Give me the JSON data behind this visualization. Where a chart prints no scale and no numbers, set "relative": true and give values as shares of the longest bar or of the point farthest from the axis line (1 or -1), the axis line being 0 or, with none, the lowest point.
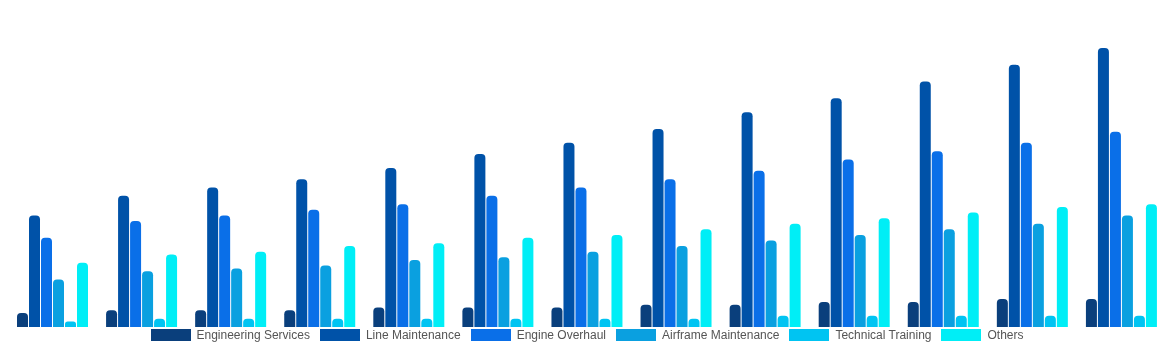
{
  "chart_data": {
    "type": "bar",
    "relative": true,
    "legend": "bottom",
    "categories": [
      null,
      null,
      null,
      null,
      null,
      null,
      null,
      null,
      null,
      null,
      null,
      null,
      null
    ],
    "series": [
      {
        "name": "Engineering Services",
        "color": "#0a3f7c",
        "values": [
          0.05,
          0.06,
          0.06,
          0.06,
          0.07,
          0.07,
          0.07,
          0.08,
          0.08,
          0.09,
          0.09,
          0.1,
          0.1
        ]
      },
      {
        "name": "Line Maintenance",
        "color": "#0052a8",
        "values": [
          0.4,
          0.47,
          0.5,
          0.53,
          0.57,
          0.62,
          0.66,
          0.71,
          0.77,
          0.82,
          0.88,
          0.94,
          1
        ]
      },
      {
        "name": "Engine Overhaul",
        "color": "#0a6fe8",
        "values": [
          0.32,
          0.38,
          0.4,
          0.42,
          0.44,
          0.47,
          0.5,
          0.53,
          0.56,
          0.6,
          0.63,
          0.66,
          0.7
        ]
      },
      {
        "name": "Airframe Maintenance",
        "color": "#0aa0e0",
        "values": [
          0.17,
          0.2,
          0.21,
          0.22,
          0.24,
          0.25,
          0.27,
          0.29,
          0.31,
          0.33,
          0.35,
          0.37,
          0.4
        ]
      },
      {
        "name": "Technical Training",
        "color": "#00c4f2",
        "values": [
          0.02,
          0.03,
          0.03,
          0.03,
          0.03,
          0.03,
          0.03,
          0.03,
          0.04,
          0.04,
          0.04,
          0.04,
          0.04
        ]
      },
      {
        "name": "Others",
        "color": "#00eef6",
        "values": [
          0.23,
          0.26,
          0.27,
          0.29,
          0.3,
          0.32,
          0.33,
          0.35,
          0.37,
          0.39,
          0.41,
          0.43,
          0.44
        ]
      }
    ]
  }
}
